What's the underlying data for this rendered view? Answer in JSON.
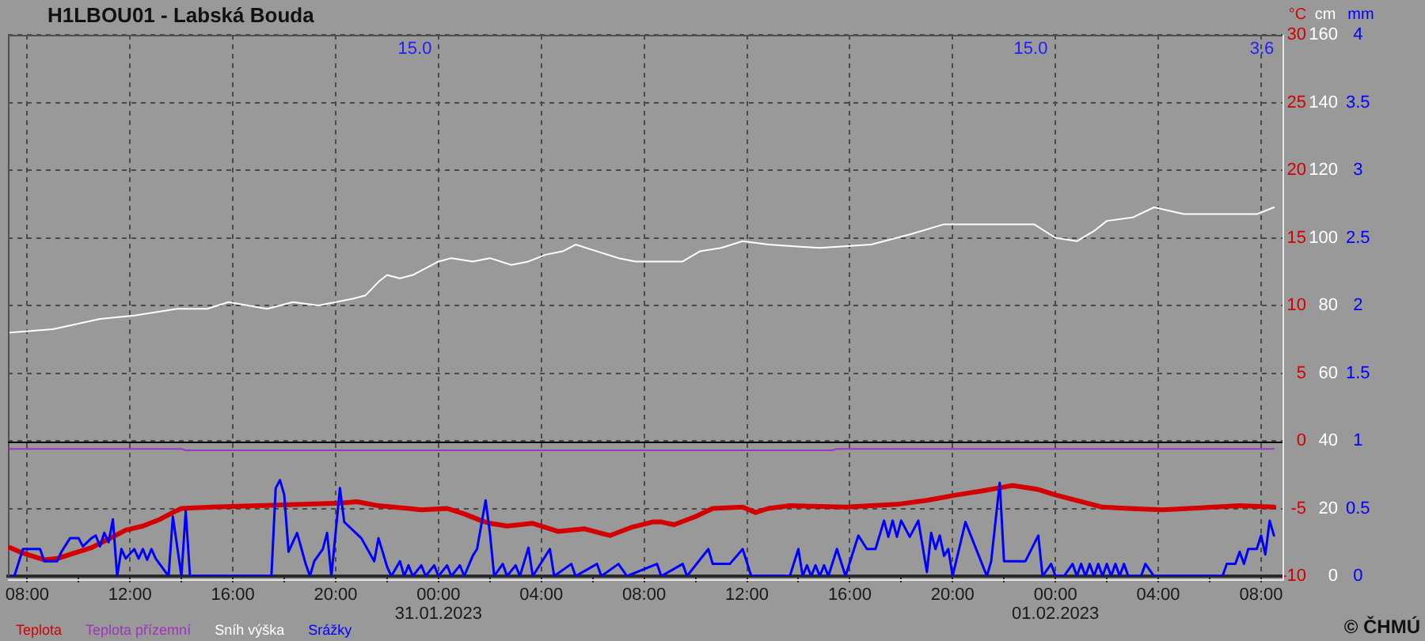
{
  "chart_data": {
    "type": "line",
    "title": "H1LBOU01 - Labská Bouda",
    "ylabel": "°C",
    "y2label": "cm",
    "y3label": "mm",
    "xlim": [
      "2023-01-30T07:15",
      "2023-02-01T08:50"
    ],
    "xticks": [
      {
        "value": "2023-01-30T08:00",
        "label": "08:00"
      },
      {
        "value": "2023-01-30T10:00",
        "label": null
      },
      {
        "value": "2023-01-30T12:00",
        "label": "12:00"
      },
      {
        "value": "2023-01-30T14:00",
        "label": null
      },
      {
        "value": "2023-01-30T16:00",
        "label": "16:00"
      },
      {
        "value": "2023-01-30T18:00",
        "label": null
      },
      {
        "value": "2023-01-30T20:00",
        "label": "20:00"
      },
      {
        "value": "2023-01-30T22:00",
        "label": null
      },
      {
        "value": "2023-01-31T00:00",
        "label": "00:00\n31.01.2023"
      },
      {
        "value": "2023-01-31T02:00",
        "label": null
      },
      {
        "value": "2023-01-31T04:00",
        "label": "04:00"
      },
      {
        "value": "2023-01-31T06:00",
        "label": null
      },
      {
        "value": "2023-01-31T08:00",
        "label": "08:00"
      },
      {
        "value": "2023-01-31T10:00",
        "label": null
      },
      {
        "value": "2023-01-31T12:00",
        "label": "12:00"
      },
      {
        "value": "2023-01-31T14:00",
        "label": null
      },
      {
        "value": "2023-01-31T16:00",
        "label": "16:00"
      },
      {
        "value": "2023-01-31T18:00",
        "label": null
      },
      {
        "value": "2023-01-31T20:00",
        "label": "20:00"
      },
      {
        "value": "2023-01-31T22:00",
        "label": null
      },
      {
        "value": "2023-02-01T00:00",
        "label": "00:00\n01.02.2023"
      },
      {
        "value": "2023-02-01T02:00",
        "label": null
      },
      {
        "value": "2023-02-01T04:00",
        "label": "04:00"
      },
      {
        "value": "2023-02-01T06:00",
        "label": null
      },
      {
        "value": "2023-02-01T08:00",
        "label": "08:00"
      }
    ],
    "ylim": [
      -10,
      30
    ],
    "yticks": [
      -10,
      -5,
      0,
      5,
      10,
      15,
      20,
      25,
      30
    ],
    "y2lim": [
      0,
      160
    ],
    "y2ticks": [
      0,
      20,
      40,
      60,
      80,
      100,
      120,
      140,
      160
    ],
    "y3lim": [
      0,
      4
    ],
    "y3ticks": [
      0,
      0.5,
      1,
      1.5,
      2,
      2.5,
      3,
      3.5,
      4
    ],
    "grid": true,
    "legend": "bottom left",
    "marker": "none",
    "ref_lines": [
      {
        "axis": "y",
        "value": 0,
        "color": "#000000"
      }
    ],
    "annotations": [
      "15.0",
      "15.0",
      "3.6",
      "© ČHMÚ"
    ],
    "series": [
      {
        "name": "Teplota",
        "color": "#d40000",
        "axis": "y",
        "x": [
          "2023-01-30T07:20",
          "2023-01-30T07:50",
          "2023-01-30T08:10",
          "2023-01-30T08:40",
          "2023-01-30T09:10",
          "2023-01-30T09:50",
          "2023-01-30T10:30",
          "2023-01-30T11:20",
          "2023-01-30T11:50",
          "2023-01-30T12:30",
          "2023-01-30T13:10",
          "2023-01-30T13:40",
          "2023-01-30T14:00",
          "2023-01-30T15:10",
          "2023-01-30T17:00",
          "2023-01-30T20:10",
          "2023-01-30T20:50",
          "2023-01-30T21:40",
          "2023-01-30T22:50",
          "2023-01-30T23:20",
          "2023-01-31T00:20",
          "2023-01-31T01:00",
          "2023-01-31T01:40",
          "2023-01-31T02:00",
          "2023-01-31T02:40",
          "2023-01-31T03:40",
          "2023-01-31T04:40",
          "2023-01-31T05:40",
          "2023-01-31T06:40",
          "2023-01-31T07:30",
          "2023-01-31T08:20",
          "2023-01-31T08:40",
          "2023-01-31T09:10",
          "2023-01-31T10:00",
          "2023-01-31T10:40",
          "2023-01-31T11:50",
          "2023-01-31T12:20",
          "2023-01-31T12:50",
          "2023-01-31T13:40",
          "2023-01-31T15:50",
          "2023-01-31T17:50",
          "2023-01-31T19:00",
          "2023-01-31T20:10",
          "2023-01-31T21:10",
          "2023-01-31T22:20",
          "2023-01-31T23:20",
          "2023-02-01T00:00",
          "2023-02-01T01:00",
          "2023-02-01T01:50",
          "2023-02-01T02:50",
          "2023-02-01T04:10",
          "2023-02-01T06:10",
          "2023-02-01T07:10",
          "2023-02-01T08:30"
        ],
        "values": [
          -7.9,
          -8.3,
          -8.5,
          -8.8,
          -8.7,
          -8.3,
          -7.9,
          -7.1,
          -6.6,
          -6.3,
          -5.8,
          -5.3,
          -5.0,
          -4.9,
          -4.8,
          -4.6,
          -4.5,
          -4.8,
          -5.0,
          -5.1,
          -5.0,
          -5.4,
          -5.9,
          -6.1,
          -6.3,
          -6.1,
          -6.7,
          -6.5,
          -7.0,
          -6.4,
          -6.0,
          -6.0,
          -6.2,
          -5.6,
          -5.0,
          -4.9,
          -5.3,
          -5.0,
          -4.8,
          -4.9,
          -4.7,
          -4.4,
          -4.0,
          -3.7,
          -3.3,
          -3.6,
          -4.0,
          -4.5,
          -4.9,
          -5.0,
          -5.1,
          -4.9,
          -4.8,
          -4.9
        ]
      },
      {
        "name": "Teplota přízemní",
        "color": "#a033c0",
        "axis": "y",
        "x": [
          "2023-01-30T07:20",
          "2023-01-30T14:00",
          "2023-01-30T14:10",
          "2023-01-31T15:20",
          "2023-01-31T15:30",
          "2023-02-01T08:30"
        ],
        "values": [
          -0.6,
          -0.6,
          -0.7,
          -0.7,
          -0.6,
          -0.6
        ]
      },
      {
        "name": "Sníh výška",
        "color": "#ffffff",
        "axis": "y2",
        "x": [
          "2023-01-30T07:20",
          "2023-01-30T09:00",
          "2023-01-30T10:50",
          "2023-01-30T12:10",
          "2023-01-30T13:50",
          "2023-01-30T15:00",
          "2023-01-30T15:50",
          "2023-01-30T17:20",
          "2023-01-30T18:20",
          "2023-01-30T19:20",
          "2023-01-30T20:40",
          "2023-01-30T21:10",
          "2023-01-30T21:40",
          "2023-01-30T22:00",
          "2023-01-30T22:30",
          "2023-01-30T23:00",
          "2023-01-31T00:00",
          "2023-01-31T00:30",
          "2023-01-31T01:20",
          "2023-01-31T02:00",
          "2023-01-31T02:50",
          "2023-01-31T03:30",
          "2023-01-31T04:10",
          "2023-01-31T04:50",
          "2023-01-31T05:20",
          "2023-01-31T06:10",
          "2023-01-31T07:00",
          "2023-01-31T07:40",
          "2023-01-31T08:40",
          "2023-01-31T09:30",
          "2023-01-31T10:10",
          "2023-01-31T11:00",
          "2023-01-31T11:50",
          "2023-01-31T12:50",
          "2023-01-31T14:50",
          "2023-01-31T16:50",
          "2023-01-31T18:20",
          "2023-01-31T19:40",
          "2023-01-31T20:20",
          "2023-01-31T21:00",
          "2023-01-31T22:10",
          "2023-01-31T23:10",
          "2023-02-01T00:00",
          "2023-02-01T00:50",
          "2023-02-01T01:30",
          "2023-02-01T02:00",
          "2023-02-01T03:00",
          "2023-02-01T03:50",
          "2023-02-01T05:00",
          "2023-02-01T06:20",
          "2023-02-01T07:50",
          "2023-02-01T08:30"
        ],
        "values": [
          72,
          73,
          76,
          77,
          79,
          79,
          81,
          79,
          81,
          80,
          82,
          83,
          87,
          89,
          88,
          89,
          93,
          94,
          93,
          94,
          92,
          93,
          95,
          96,
          98,
          96,
          94,
          93,
          93,
          93,
          96,
          97,
          99,
          98,
          97,
          98,
          101,
          104,
          104,
          104,
          104,
          104,
          100,
          99,
          102,
          105,
          106,
          109,
          107,
          107,
          107,
          109
        ]
      },
      {
        "name": "Srážky",
        "color": "#0000ff",
        "axis": "y3",
        "x": [
          "2023-01-30T07:20",
          "2023-01-30T07:30",
          "2023-01-30T07:50",
          "2023-01-30T08:30",
          "2023-01-30T08:40",
          "2023-01-30T09:10",
          "2023-01-30T09:20",
          "2023-01-30T09:40",
          "2023-01-30T10:00",
          "2023-01-30T10:10",
          "2023-01-30T10:30",
          "2023-01-30T10:40",
          "2023-01-30T10:50",
          "2023-01-30T11:00",
          "2023-01-30T11:10",
          "2023-01-30T11:20",
          "2023-01-30T11:30",
          "2023-01-30T11:40",
          "2023-01-30T11:50",
          "2023-01-30T12:10",
          "2023-01-30T12:20",
          "2023-01-30T12:30",
          "2023-01-30T12:40",
          "2023-01-30T12:50",
          "2023-01-30T13:00",
          "2023-01-30T13:30",
          "2023-01-30T13:40",
          "2023-01-30T14:00",
          "2023-01-30T14:10",
          "2023-01-30T14:20",
          "2023-01-30T17:30",
          "2023-01-30T17:40",
          "2023-01-30T17:50",
          "2023-01-30T18:00",
          "2023-01-30T18:10",
          "2023-01-30T18:30",
          "2023-01-30T18:50",
          "2023-01-30T19:00",
          "2023-01-30T19:10",
          "2023-01-30T19:30",
          "2023-01-30T19:40",
          "2023-01-30T19:50",
          "2023-01-30T20:10",
          "2023-01-30T20:20",
          "2023-01-30T21:00",
          "2023-01-30T21:30",
          "2023-01-30T21:40",
          "2023-01-30T22:00",
          "2023-01-30T22:10",
          "2023-01-30T22:30",
          "2023-01-30T22:40",
          "2023-01-30T22:50",
          "2023-01-30T23:00",
          "2023-01-30T23:20",
          "2023-01-30T23:30",
          "2023-01-30T23:50",
          "2023-01-31T00:00",
          "2023-01-31T00:20",
          "2023-01-31T00:30",
          "2023-01-31T00:50",
          "2023-01-31T01:00",
          "2023-01-31T01:20",
          "2023-01-31T01:30",
          "2023-01-31T01:50",
          "2023-01-31T02:00",
          "2023-01-31T02:10",
          "2023-01-31T02:30",
          "2023-01-31T02:40",
          "2023-01-31T03:00",
          "2023-01-31T03:10",
          "2023-01-31T03:30",
          "2023-01-31T03:40",
          "2023-01-31T04:20",
          "2023-01-31T04:30",
          "2023-01-31T05:10",
          "2023-01-31T05:20",
          "2023-01-31T06:10",
          "2023-01-31T06:20",
          "2023-01-31T07:00",
          "2023-01-31T07:20",
          "2023-01-31T08:30",
          "2023-01-31T08:40",
          "2023-01-31T09:30",
          "2023-01-31T09:40",
          "2023-01-31T10:30",
          "2023-01-31T10:40",
          "2023-01-31T11:20",
          "2023-01-31T11:50",
          "2023-01-31T12:10",
          "2023-01-31T13:40",
          "2023-01-31T14:00",
          "2023-01-31T14:10",
          "2023-01-31T14:20",
          "2023-01-31T14:30",
          "2023-01-31T14:40",
          "2023-01-31T14:50",
          "2023-01-31T15:00",
          "2023-01-31T15:10",
          "2023-01-31T15:30",
          "2023-01-31T15:50",
          "2023-01-31T16:10",
          "2023-01-31T16:20",
          "2023-01-31T16:40",
          "2023-01-31T17:00",
          "2023-01-31T17:20",
          "2023-01-31T17:30",
          "2023-01-31T17:40",
          "2023-01-31T17:50",
          "2023-01-31T18:00",
          "2023-01-31T18:20",
          "2023-01-31T18:40",
          "2023-01-31T19:00",
          "2023-01-31T19:10",
          "2023-01-31T19:20",
          "2023-01-31T19:30",
          "2023-01-31T19:40",
          "2023-01-31T19:50",
          "2023-01-31T20:00",
          "2023-01-31T20:30",
          "2023-01-31T21:20",
          "2023-01-31T21:30",
          "2023-01-31T21:50",
          "2023-01-31T22:00",
          "2023-01-31T22:50",
          "2023-01-31T23:20",
          "2023-01-31T23:30",
          "2023-01-31T23:50",
          "2023-02-01T00:00",
          "2023-02-01T00:20",
          "2023-02-01T00:40",
          "2023-02-01T00:50",
          "2023-02-01T01:00",
          "2023-02-01T01:10",
          "2023-02-01T01:20",
          "2023-02-01T01:30",
          "2023-02-01T01:40",
          "2023-02-01T01:50",
          "2023-02-01T02:00",
          "2023-02-01T02:10",
          "2023-02-01T02:20",
          "2023-02-01T02:30",
          "2023-02-01T02:40",
          "2023-02-01T02:50",
          "2023-02-01T03:20",
          "2023-02-01T03:30",
          "2023-02-01T03:50",
          "2023-02-01T06:30",
          "2023-02-01T06:40",
          "2023-02-01T07:00",
          "2023-02-01T07:10",
          "2023-02-01T07:20",
          "2023-02-01T07:30",
          "2023-02-01T07:50",
          "2023-02-01T08:00",
          "2023-02-01T08:10",
          "2023-02-01T08:20",
          "2023-02-01T08:30"
        ],
        "values": [
          0,
          0,
          0.2,
          0.2,
          0.11,
          0.11,
          0.18,
          0.28,
          0.28,
          0.22,
          0.28,
          0.3,
          0.22,
          0.32,
          0.25,
          0.42,
          0,
          0.2,
          0.13,
          0.2,
          0.13,
          0.2,
          0.12,
          0.2,
          0.13,
          0,
          0.44,
          0,
          0.48,
          0,
          0,
          0.65,
          0.71,
          0.6,
          0.18,
          0.32,
          0.09,
          0,
          0.11,
          0.2,
          0.32,
          0,
          0.65,
          0.4,
          0.28,
          0.11,
          0.28,
          0.07,
          0,
          0.11,
          0,
          0.08,
          0,
          0.08,
          0,
          0.08,
          0,
          0.08,
          0,
          0.08,
          0,
          0.15,
          0.2,
          0.56,
          0.32,
          0,
          0.09,
          0,
          0.08,
          0,
          0.21,
          0,
          0.2,
          0,
          0.09,
          0,
          0.09,
          0,
          0.09,
          0,
          0.09,
          0,
          0.09,
          0,
          0.2,
          0.09,
          0.09,
          0.2,
          0,
          0,
          0.2,
          0,
          0.08,
          0,
          0.08,
          0,
          0.08,
          0,
          0.2,
          0,
          0.2,
          0.3,
          0.2,
          0.2,
          0.41,
          0.29,
          0.41,
          0.29,
          0.41,
          0.29,
          0.41,
          0.03,
          0.32,
          0.2,
          0.3,
          0.15,
          0.2,
          0,
          0.4,
          0,
          0.11,
          0.69,
          0.11,
          0.11,
          0.3,
          0,
          0.09,
          0,
          0,
          0.09,
          0,
          0.09,
          0,
          0.09,
          0,
          0.09,
          0,
          0.09,
          0,
          0.09,
          0,
          0.09,
          0,
          0,
          0.09,
          0,
          0,
          0.09,
          0.09,
          0.18,
          0.09,
          0.2,
          0.2,
          0.3,
          0.16,
          0.41,
          0.3
        ]
      }
    ]
  }
}
